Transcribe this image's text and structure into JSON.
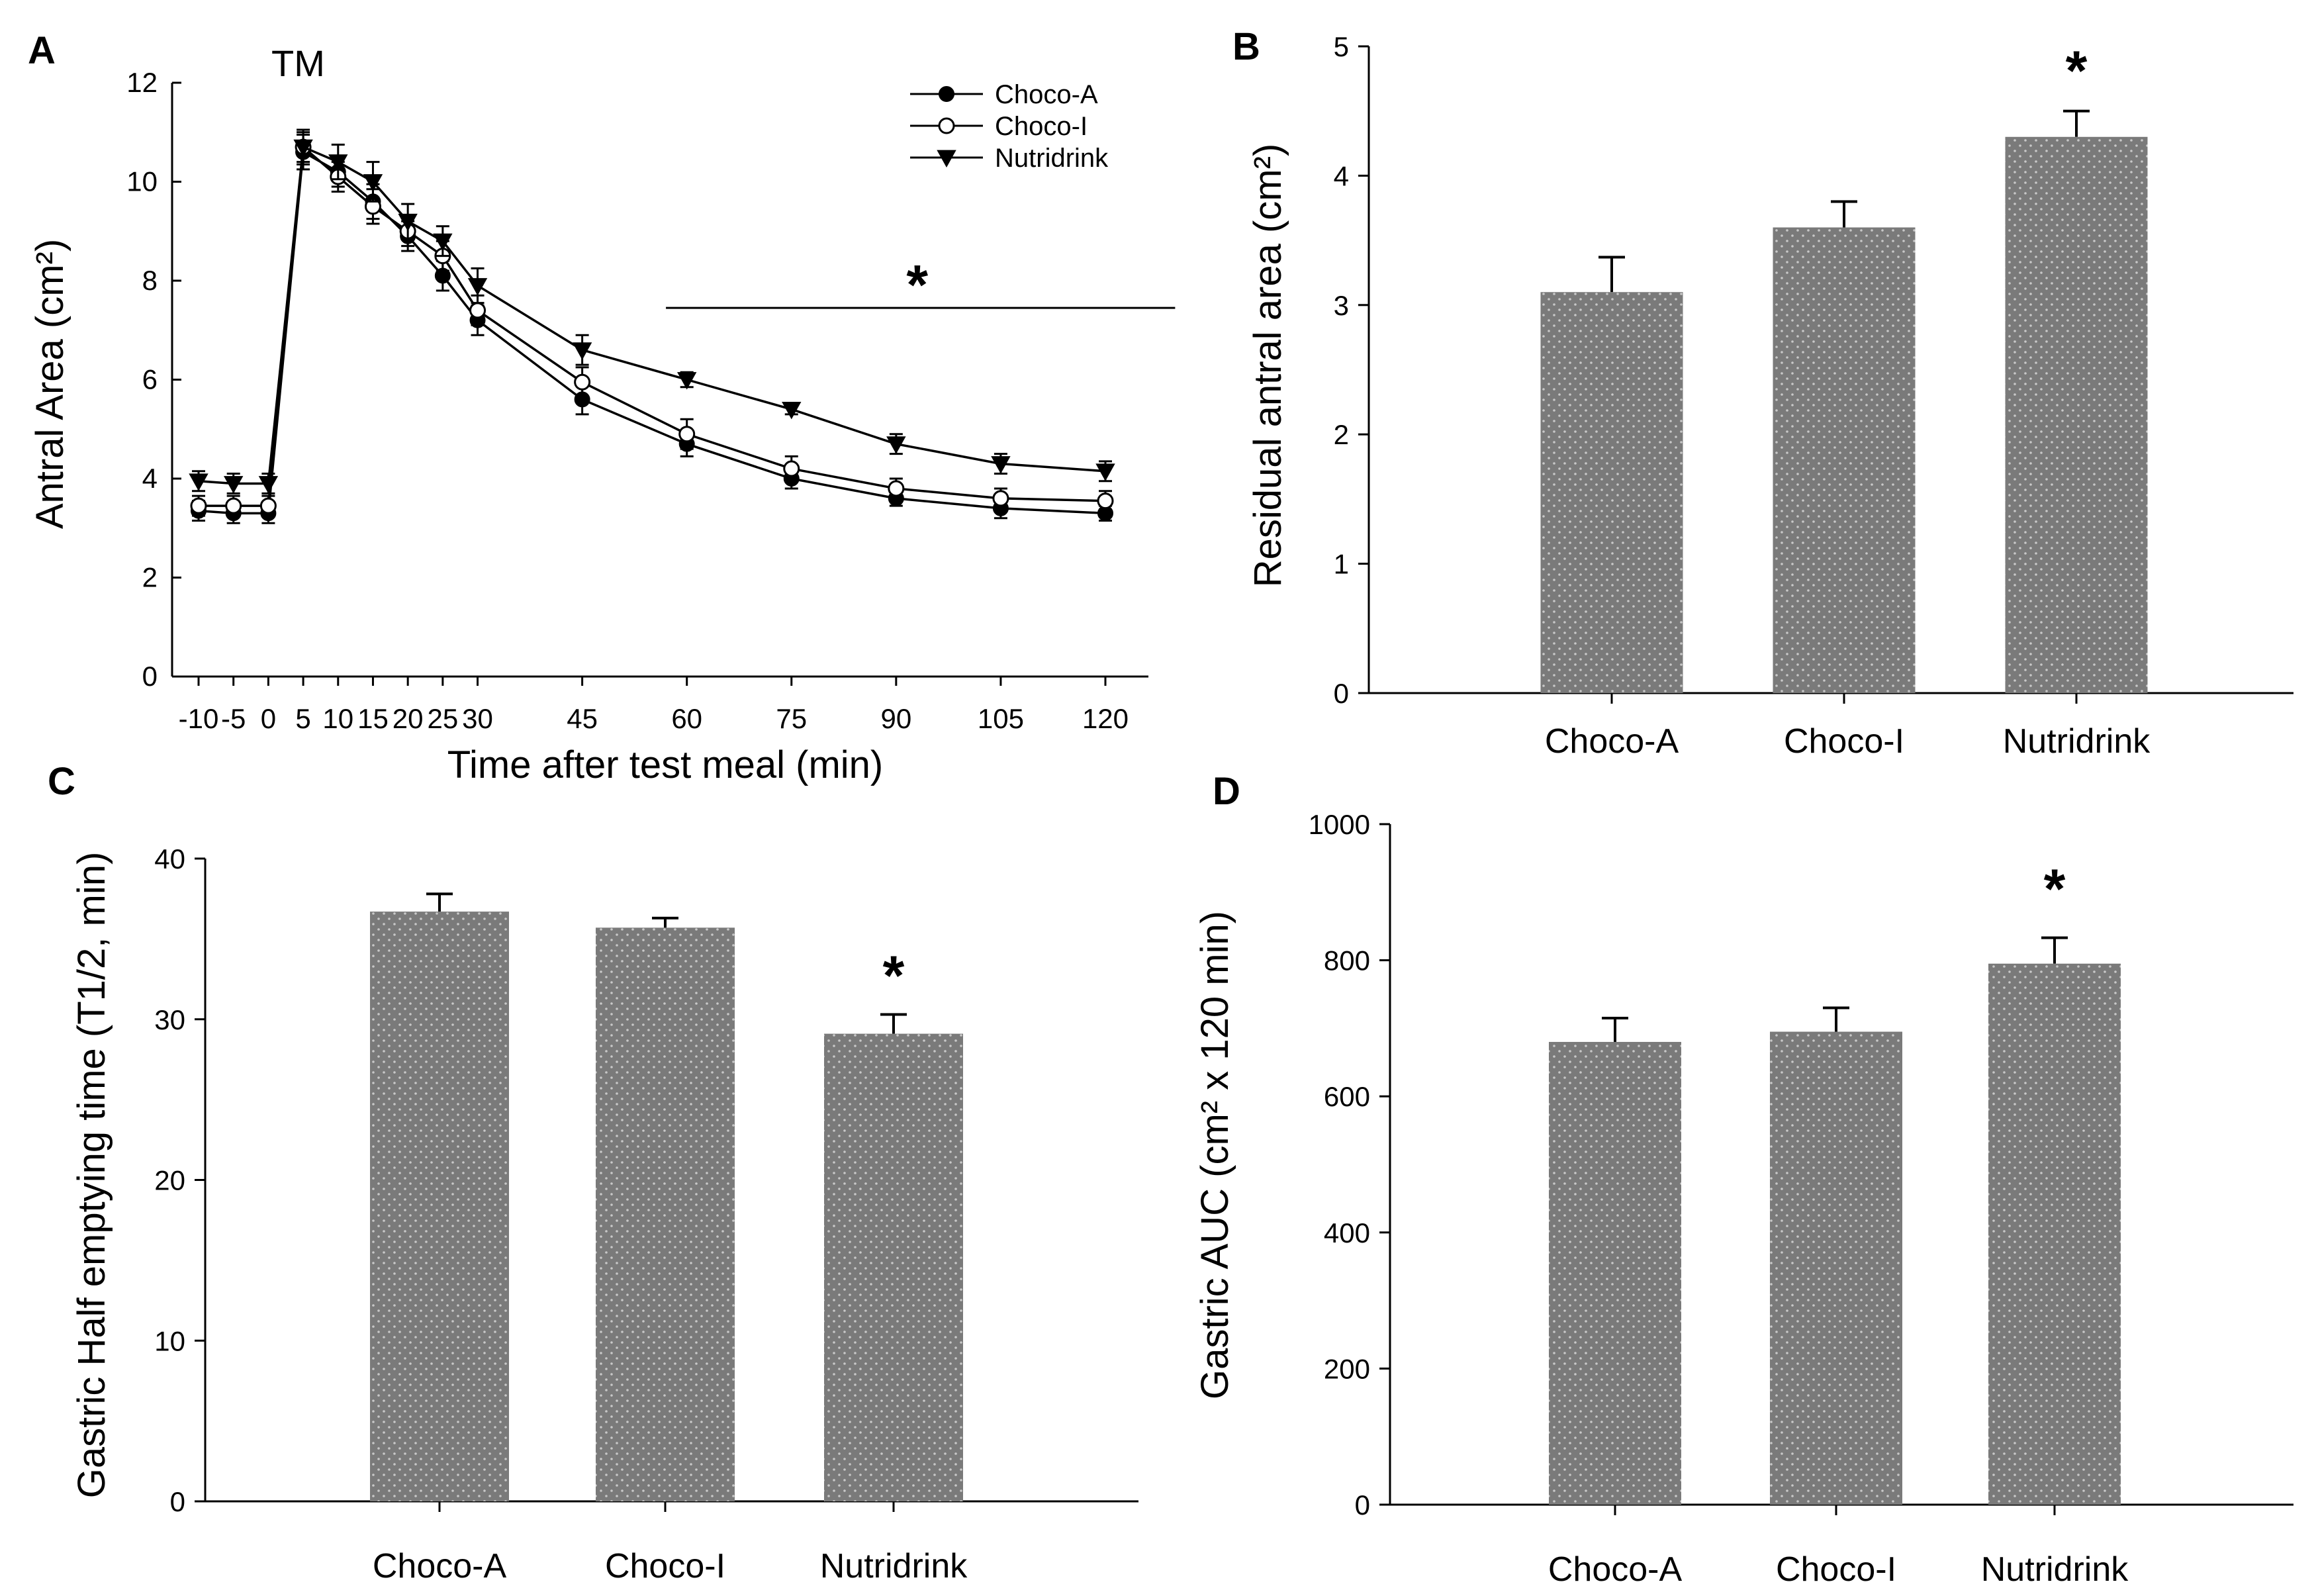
{
  "colors": {
    "bar_fill": "#7a7a7a",
    "bar_dot": "#c8c8c8",
    "ink": "#000000",
    "background": "#ffffff"
  },
  "chart_data": [
    {
      "panel": "A",
      "type": "line",
      "annotation": "TM",
      "xlabel": "Time after test meal (min)",
      "ylabel": "Antral Area (cm²)",
      "x": [
        -10,
        -5,
        0,
        5,
        10,
        15,
        20,
        25,
        30,
        45,
        60,
        75,
        90,
        105,
        120
      ],
      "x_tick_labels": [
        "-10",
        "-5",
        "0",
        "5",
        "10",
        "15",
        "20",
        "25",
        "30",
        "45",
        "60",
        "75",
        "90",
        "105",
        "120"
      ],
      "ylim": [
        0,
        12
      ],
      "y_ticks": [
        0,
        2,
        4,
        6,
        8,
        10,
        12
      ],
      "legend_position": "top-right",
      "series": [
        {
          "name": "Choco-A",
          "marker": "filled-circle",
          "values": [
            3.35,
            3.3,
            3.3,
            10.6,
            10.2,
            9.6,
            8.9,
            8.1,
            7.2,
            5.6,
            4.7,
            4.0,
            3.6,
            3.4,
            3.3
          ],
          "errors": [
            0.2,
            0.2,
            0.2,
            0.35,
            0.3,
            0.35,
            0.3,
            0.3,
            0.3,
            0.3,
            0.25,
            0.2,
            0.15,
            0.2,
            0.15
          ]
        },
        {
          "name": "Choco-I",
          "marker": "open-circle",
          "values": [
            3.45,
            3.45,
            3.45,
            10.7,
            10.1,
            9.5,
            9.0,
            8.5,
            7.4,
            5.95,
            4.9,
            4.2,
            3.8,
            3.6,
            3.55
          ],
          "errors": [
            0.2,
            0.2,
            0.2,
            0.3,
            0.3,
            0.35,
            0.3,
            0.3,
            0.3,
            0.3,
            0.3,
            0.25,
            0.2,
            0.2,
            0.2
          ]
        },
        {
          "name": "Nutridrink",
          "marker": "filled-triangle-down",
          "values": [
            3.95,
            3.9,
            3.9,
            10.7,
            10.4,
            10.0,
            9.2,
            8.8,
            7.9,
            6.6,
            6.0,
            5.4,
            4.7,
            4.3,
            4.15
          ],
          "errors": [
            0.2,
            0.2,
            0.2,
            0.35,
            0.35,
            0.4,
            0.35,
            0.3,
            0.35,
            0.3,
            0.15,
            0.1,
            0.2,
            0.2,
            0.2
          ]
        }
      ],
      "significance": {
        "label": "*",
        "from_x": 57,
        "to_x": 130,
        "y": 7.45
      }
    },
    {
      "panel": "B",
      "type": "bar",
      "xlabel": "",
      "ylabel": "Residual antral area (cm²)",
      "categories": [
        "Choco-A",
        "Choco-I",
        "Nutridrink"
      ],
      "values": [
        3.1,
        3.6,
        4.3
      ],
      "errors": [
        0.27,
        0.2,
        0.2
      ],
      "ylim": [
        0,
        5
      ],
      "y_ticks": [
        0,
        1,
        2,
        3,
        4,
        5
      ],
      "significance": [
        "",
        "",
        "*"
      ]
    },
    {
      "panel": "C",
      "type": "bar",
      "xlabel": "",
      "ylabel": "Gastric Half emptying time (T1/2, min)",
      "categories": [
        "Choco-A",
        "Choco-I",
        "Nutridrink"
      ],
      "values": [
        36.7,
        35.7,
        29.1
      ],
      "errors": [
        1.1,
        0.6,
        1.2
      ],
      "ylim": [
        0,
        40
      ],
      "y_ticks": [
        0,
        10,
        20,
        30,
        40
      ],
      "significance": [
        "",
        "",
        "*"
      ]
    },
    {
      "panel": "D",
      "type": "bar",
      "xlabel": "",
      "ylabel": "Gastric AUC (cm² x 120 min)",
      "categories": [
        "Choco-A",
        "Choco-I",
        "Nutridrink"
      ],
      "values": [
        680,
        695,
        795
      ],
      "errors": [
        35,
        35,
        38
      ],
      "ylim": [
        0,
        1000
      ],
      "y_ticks": [
        0,
        200,
        400,
        600,
        800,
        1000
      ],
      "significance": [
        "",
        "",
        "*"
      ]
    }
  ]
}
